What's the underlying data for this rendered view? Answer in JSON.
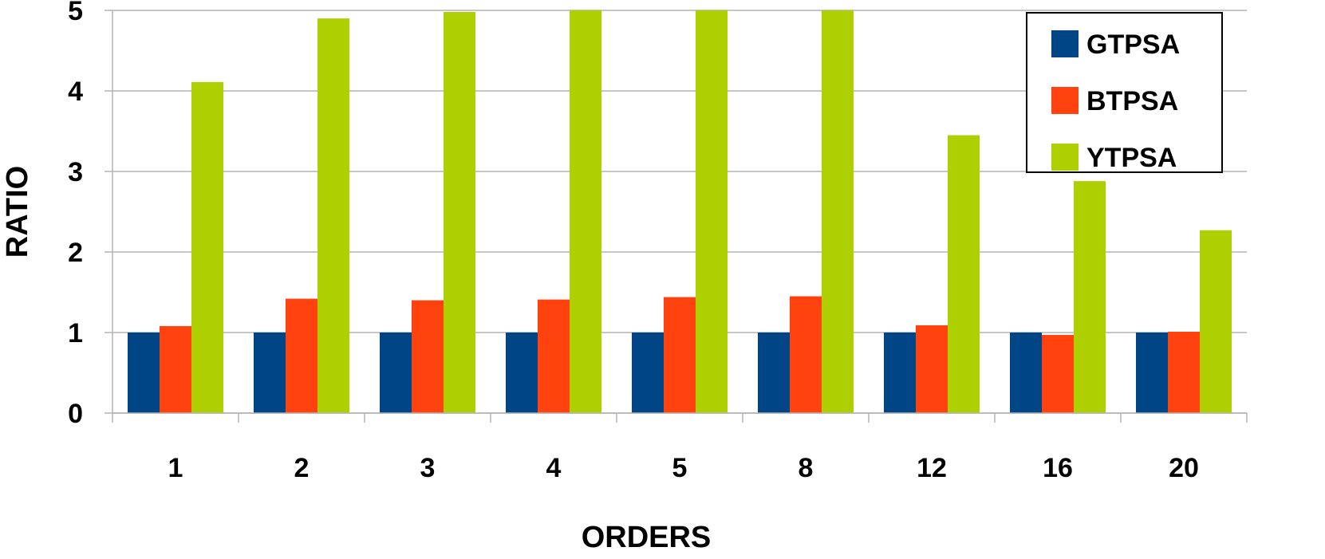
{
  "chart_data": {
    "type": "bar",
    "title": "",
    "xlabel": "ORDERS",
    "ylabel": "RATIO",
    "categories": [
      "1",
      "2",
      "3",
      "4",
      "5",
      "8",
      "12",
      "16",
      "20"
    ],
    "series": [
      {
        "name": "GTPSA",
        "color": "#004586",
        "values": [
          1,
          1,
          1,
          1,
          1,
          1,
          1,
          1,
          1
        ]
      },
      {
        "name": "BTPSA",
        "color": "#ff420e",
        "values": [
          1.08,
          1.42,
          1.4,
          1.41,
          1.44,
          1.45,
          1.09,
          0.97,
          1.01
        ]
      },
      {
        "name": "YTPSA",
        "color": "#aecf00",
        "values": [
          4.11,
          4.9,
          4.98,
          5.0,
          5.0,
          5.0,
          3.45,
          2.88,
          2.27
        ]
      }
    ],
    "ylim": [
      0,
      5
    ],
    "yticks": [
      "0",
      "1",
      "2",
      "3",
      "4",
      "5"
    ],
    "grid": true,
    "legend": "top-right"
  }
}
